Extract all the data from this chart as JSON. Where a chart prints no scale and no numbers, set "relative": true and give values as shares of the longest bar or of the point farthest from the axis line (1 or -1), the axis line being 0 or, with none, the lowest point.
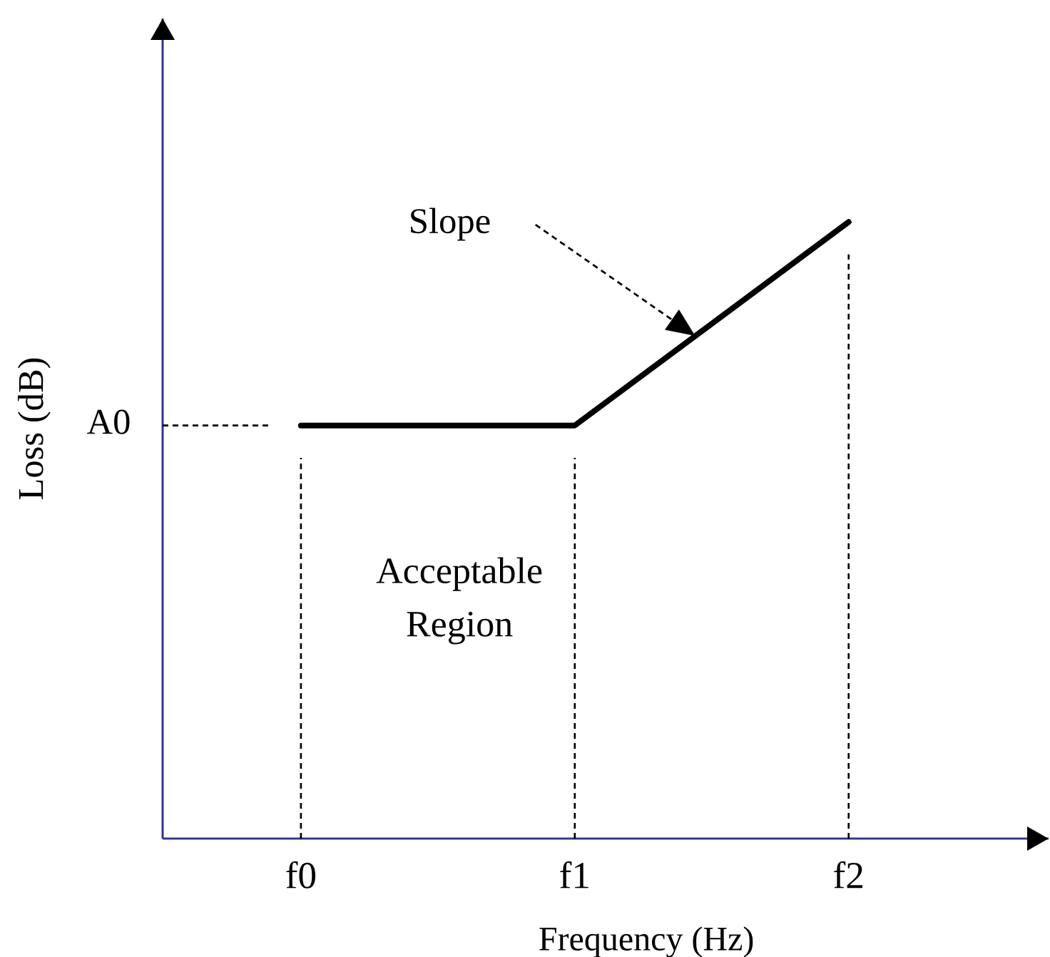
{
  "chart_data": {
    "type": "line",
    "relative": true,
    "xlabel": "Frequency (Hz)",
    "ylabel": "Loss (dB)",
    "categories": [
      "f0",
      "f1",
      "f2"
    ],
    "series": [
      {
        "color": "#000000",
        "values": [
          0.67,
          0.67,
          1
        ]
      }
    ],
    "ref_lines": [
      {
        "axis": "y",
        "value": 0.67,
        "label": "A0",
        "line_style": "dashed",
        "color": "#000000"
      },
      {
        "axis": "x",
        "value": "f0",
        "line_style": "dashed",
        "color": "#000000"
      },
      {
        "axis": "x",
        "value": "f1",
        "line_style": "dashed",
        "color": "#000000"
      },
      {
        "axis": "x",
        "value": "f2",
        "line_style": "dashed",
        "color": "#000000"
      }
    ],
    "annotations": [
      "Slope",
      "Acceptable Region"
    ],
    "marker": "none",
    "line_style": "solid"
  }
}
